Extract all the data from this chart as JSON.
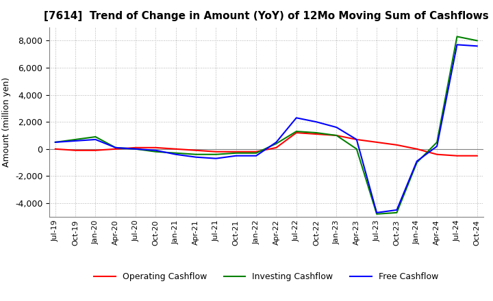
{
  "title": "[7614]  Trend of Change in Amount (YoY) of 12Mo Moving Sum of Cashflows",
  "ylabel": "Amount (million yen)",
  "ylim": [
    -5000,
    9000
  ],
  "yticks": [
    -4000,
    -2000,
    0,
    2000,
    4000,
    6000,
    8000
  ],
  "x_labels": [
    "Jul-19",
    "Oct-19",
    "Jan-20",
    "Apr-20",
    "Jul-20",
    "Oct-20",
    "Jan-21",
    "Apr-21",
    "Jul-21",
    "Oct-21",
    "Jan-22",
    "Apr-22",
    "Jul-22",
    "Oct-22",
    "Jan-23",
    "Apr-23",
    "Jul-23",
    "Oct-23",
    "Jan-24",
    "Apr-24",
    "Jul-24",
    "Oct-24"
  ],
  "operating": [
    0,
    -100,
    -100,
    0,
    100,
    100,
    0,
    -100,
    -200,
    -200,
    -200,
    100,
    1200,
    1100,
    1000,
    700,
    500,
    300,
    0,
    -400,
    -500,
    -500
  ],
  "investing": [
    500,
    700,
    900,
    100,
    0,
    -200,
    -300,
    -400,
    -400,
    -300,
    -300,
    400,
    1300,
    1200,
    1000,
    0,
    -4800,
    -4700,
    -1000,
    500,
    8300,
    8000
  ],
  "free": [
    500,
    600,
    700,
    100,
    0,
    -100,
    -400,
    -600,
    -700,
    -500,
    -500,
    500,
    2300,
    2000,
    1600,
    700,
    -4700,
    -4500,
    -900,
    200,
    7700,
    7600
  ],
  "operating_color": "#ff0000",
  "investing_color": "#008000",
  "free_color": "#0000ff",
  "background_color": "#ffffff",
  "grid_color": "#b0b0b0",
  "title_fontsize": 11,
  "axis_fontsize": 9,
  "tick_fontsize": 8,
  "legend_fontsize": 9
}
